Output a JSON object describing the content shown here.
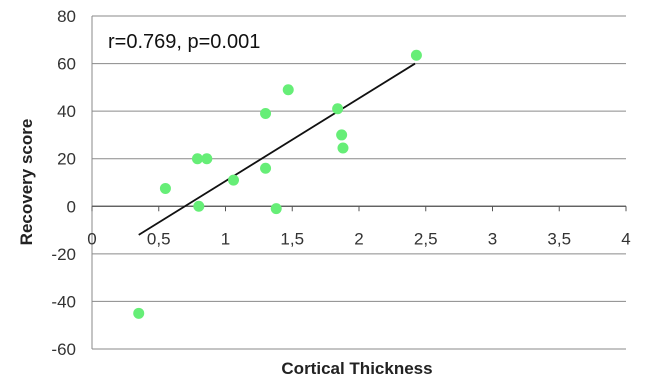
{
  "chart_data": {
    "type": "scatter",
    "title": "",
    "xlabel": "Cortical Thickness",
    "ylabel": "Recovery score",
    "xlim": [
      0,
      4
    ],
    "ylim": [
      -60,
      80
    ],
    "x_ticks": [
      0,
      0.5,
      1,
      1.5,
      2,
      2.5,
      3,
      3.5,
      4
    ],
    "x_tick_labels": [
      "0",
      "0,5",
      "1",
      "1,5",
      "2",
      "2,5",
      "3",
      "3,5",
      "4"
    ],
    "y_ticks": [
      -60,
      -40,
      -20,
      0,
      20,
      40,
      60,
      80
    ],
    "y_tick_labels": [
      "-60",
      "-40",
      "-20",
      "0",
      "20",
      "40",
      "60",
      "80"
    ],
    "grid": "horizontal",
    "annotation": "r=0.769, p=0.001",
    "marker_color": "#66ee77",
    "trendline": {
      "from": [
        0.35,
        -12
      ],
      "to": [
        2.42,
        60
      ]
    },
    "points": [
      {
        "x": 0.35,
        "y": -45
      },
      {
        "x": 0.55,
        "y": 7.5
      },
      {
        "x": 0.79,
        "y": 20
      },
      {
        "x": 0.8,
        "y": 0
      },
      {
        "x": 0.86,
        "y": 20
      },
      {
        "x": 1.06,
        "y": 11
      },
      {
        "x": 1.3,
        "y": 39
      },
      {
        "x": 1.3,
        "y": 16
      },
      {
        "x": 1.38,
        "y": -1
      },
      {
        "x": 1.47,
        "y": 49
      },
      {
        "x": 1.84,
        "y": 41
      },
      {
        "x": 1.87,
        "y": 30
      },
      {
        "x": 1.88,
        "y": 24.5
      },
      {
        "x": 2.43,
        "y": 63.5
      }
    ]
  }
}
